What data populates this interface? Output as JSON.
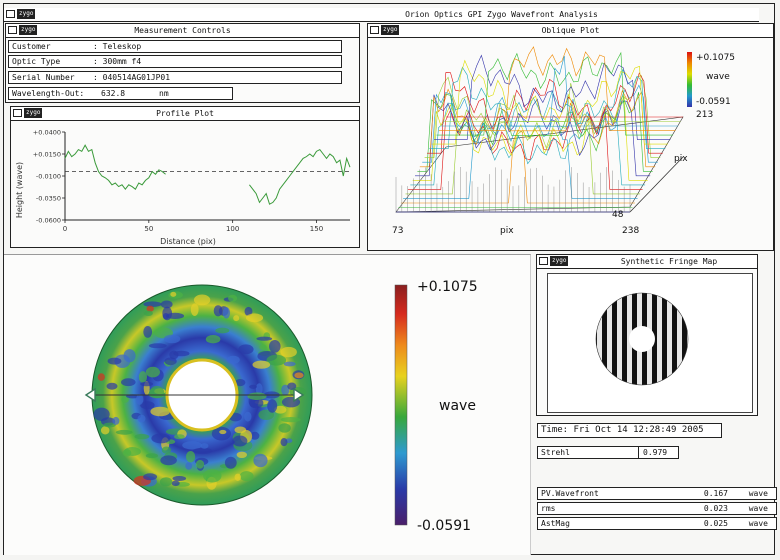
{
  "app": {
    "title": "Orion Optics GPI Zygo Wavefront Analysis",
    "logo": "zygo"
  },
  "measurement_controls": {
    "title": "Measurement Controls",
    "fields": [
      {
        "label": "Customer",
        "value": ": Teleskop"
      },
      {
        "label": "Optic Type",
        "value": ": 300mm f4"
      },
      {
        "label": "Serial Number",
        "value": ": 040514AG01JP01"
      },
      {
        "label": "Wavelength-Out:",
        "value": "632.8",
        "unit": "nm"
      }
    ]
  },
  "profile_plot": {
    "title": "Profile Plot",
    "ylabel": "Height (wave)",
    "xlabel": "Distance (pix)",
    "yticks": [
      "+0.0400",
      "+0.0150",
      "-0.0100",
      "-0.0350",
      "-0.0600"
    ],
    "xticks": [
      "0",
      "50",
      "100",
      "150"
    ]
  },
  "oblique_plot": {
    "title": "Oblique Plot",
    "scale_max": "+0.1075",
    "scale_unit": "wave",
    "scale_min": "-0.0591",
    "size_label": "213",
    "pix_right": "pix",
    "y_end": "48",
    "x_start": "73",
    "x_label": "pix",
    "x_end": "238"
  },
  "surface_map": {
    "scale_max": "+0.1075",
    "scale_unit": "wave",
    "scale_min": "-0.0591"
  },
  "fringe_map": {
    "title": "Synthetic Fringe Map"
  },
  "results": {
    "time": "Time: Fri Oct 14 12:28:49 2005",
    "strehl_label": "Strehl",
    "strehl_value": "0.979",
    "rows": [
      {
        "label": "PV.Wavefront",
        "value": "0.167",
        "unit": "wave"
      },
      {
        "label": "rms",
        "value": "0.023",
        "unit": "wave"
      },
      {
        "label": "AstMag",
        "value": "0.025",
        "unit": "wave"
      }
    ]
  },
  "chart_data": {
    "type": "line",
    "title": "Profile Plot",
    "xlabel": "Distance (pix)",
    "ylabel": "Height (wave)",
    "xlim": [
      0,
      170
    ],
    "ylim": [
      -0.06,
      0.04
    ],
    "x": [
      0,
      2,
      4,
      6,
      8,
      10,
      12,
      14,
      16,
      18,
      20,
      22,
      24,
      26,
      28,
      30,
      32,
      34,
      36,
      38,
      40,
      42,
      44,
      46,
      48,
      50,
      52,
      54,
      56,
      58,
      60,
      110,
      112,
      114,
      116,
      118,
      120,
      122,
      124,
      126,
      128,
      130,
      132,
      134,
      136,
      138,
      140,
      142,
      144,
      146,
      148,
      150,
      152,
      154,
      156,
      158,
      160,
      162,
      164,
      166,
      168,
      170
    ],
    "y": [
      0.01,
      0.018,
      0.012,
      0.015,
      0.02,
      0.018,
      0.025,
      0.018,
      0.02,
      0.005,
      -0.005,
      -0.01,
      -0.012,
      -0.015,
      -0.02,
      -0.018,
      -0.022,
      -0.02,
      -0.025,
      -0.02,
      -0.022,
      -0.025,
      -0.018,
      -0.02,
      -0.015,
      -0.012,
      -0.005,
      -0.008,
      -0.003,
      -0.005,
      -0.008,
      -0.02,
      -0.025,
      -0.03,
      -0.04,
      -0.035,
      -0.03,
      -0.042,
      -0.04,
      -0.035,
      -0.025,
      -0.02,
      -0.015,
      -0.01,
      -0.005,
      0.0,
      0.005,
      0.01,
      0.012,
      0.015,
      0.012,
      0.018,
      0.02,
      0.015,
      0.01,
      0.015,
      0.012,
      0.005,
      0.008,
      -0.01,
      0.01,
      0.0
    ],
    "reference_line": -0.005
  }
}
